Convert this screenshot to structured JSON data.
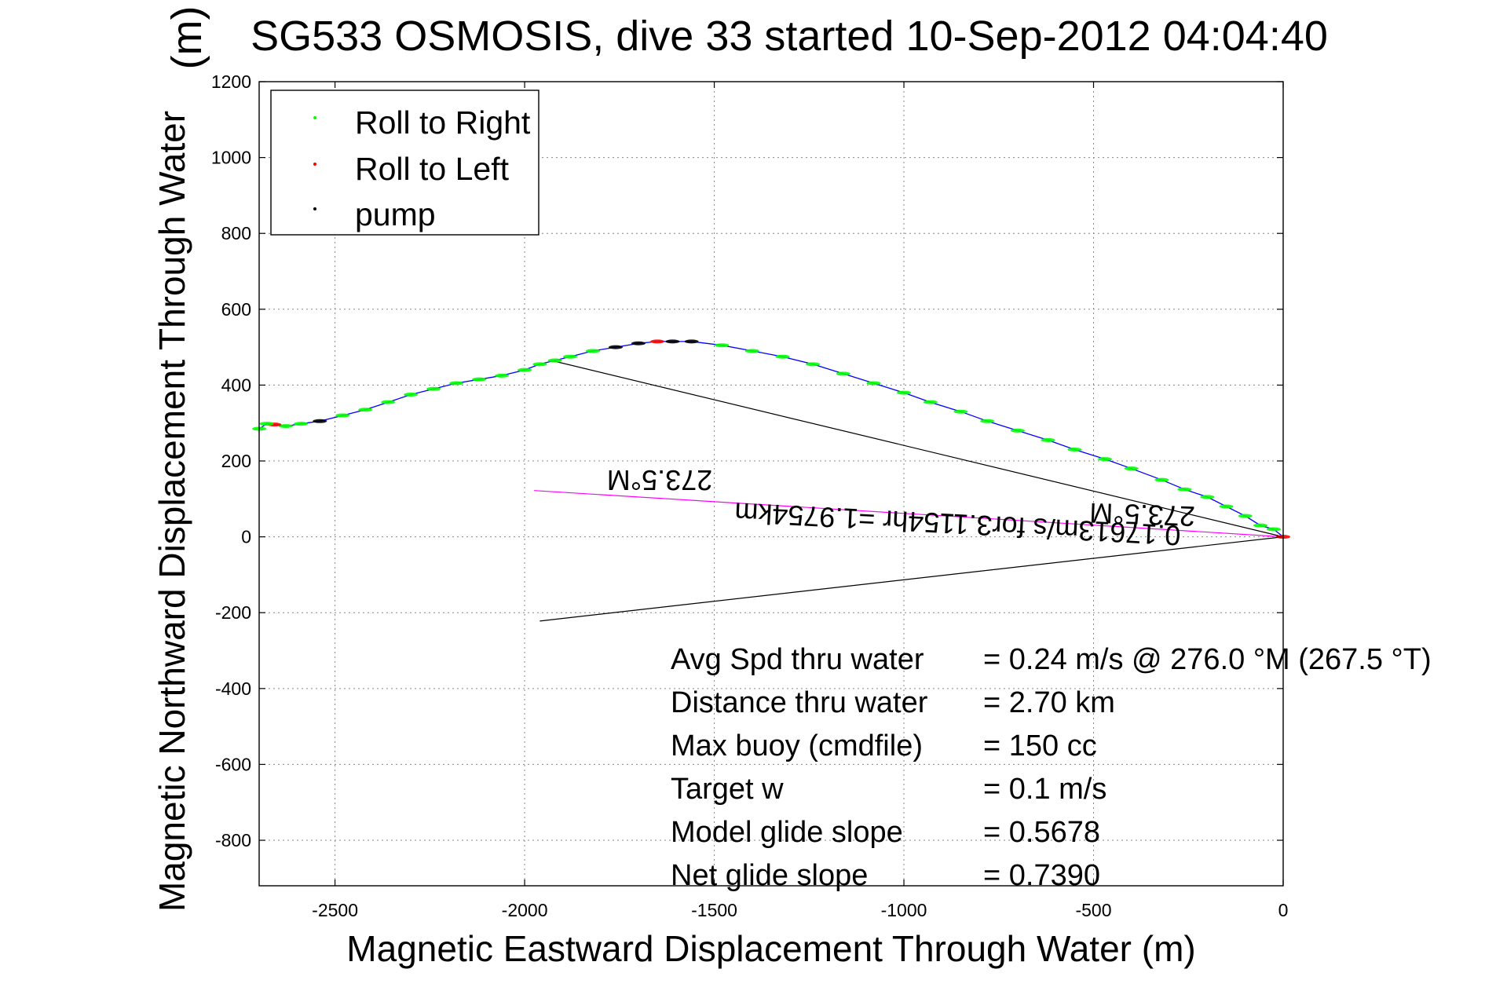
{
  "chart_data": {
    "type": "line",
    "title": "SG533 OSMOSIS, dive 33 started 10-Sep-2012 04:04:40",
    "title_overlap": "(m)",
    "xlabel": "Magnetic Eastward Displacement Through Water (m)",
    "ylabel": "Magnetic Northward Displacement Through Water",
    "xlim": [
      -2700,
      0
    ],
    "ylim": [
      -920,
      1200
    ],
    "xticks": [
      -2500,
      -2000,
      -1500,
      -1000,
      -500,
      0
    ],
    "yticks": [
      -800,
      -600,
      -400,
      -200,
      0,
      200,
      400,
      600,
      800,
      1000,
      1200
    ],
    "grid": true,
    "legend": {
      "placement": "top-left",
      "entries": [
        {
          "label": "Roll to Right",
          "color": "#00ff00"
        },
        {
          "label": "Roll to Left",
          "color": "#ff0000"
        },
        {
          "label": "pump",
          "color": "#000000"
        }
      ]
    },
    "series": [
      {
        "color": "#0000ff",
        "x": [
          0,
          -25,
          -60,
          -100,
          -150,
          -200,
          -260,
          -320,
          -400,
          -470,
          -550,
          -620,
          -700,
          -780,
          -850,
          -930,
          -1000,
          -1080,
          -1160,
          -1240,
          -1320,
          -1400,
          -1480,
          -1560,
          -1610,
          -1650,
          -1700,
          -1760,
          -1820,
          -1880,
          -1920,
          -1960,
          -2000,
          -2060,
          -2120,
          -2180,
          -2240,
          -2300,
          -2360,
          -2420,
          -2480,
          -2540,
          -2590,
          -2630,
          -2660,
          -2680,
          -2700
        ],
        "y": [
          0,
          20,
          30,
          55,
          80,
          105,
          125,
          150,
          180,
          205,
          230,
          255,
          280,
          305,
          330,
          355,
          380,
          405,
          430,
          455,
          475,
          490,
          505,
          515,
          515,
          515,
          510,
          500,
          490,
          475,
          465,
          455,
          440,
          425,
          415,
          405,
          390,
          375,
          355,
          335,
          320,
          305,
          298,
          292,
          296,
          298,
          285
        ]
      }
    ],
    "rays": [
      {
        "name": "",
        "color": "#000000",
        "x": [
          0,
          -1930
        ],
        "y": [
          0,
          465
        ]
      },
      {
        "name": "",
        "color": "#000000",
        "x": [
          0,
          -1960
        ],
        "y": [
          0,
          -222
        ]
      },
      {
        "name": "",
        "color": "#ff00ff",
        "x": [
          0,
          -1975
        ],
        "y": [
          0,
          122
        ]
      }
    ],
    "ray_labels": [
      {
        "text": "273.5°M",
        "x": -1625,
        "y": 165
      },
      {
        "text": "0.17613m/s for3.1154hr =1.9754km",
        "x": -1200,
        "y": 28
      },
      {
        "text": "273.5°M",
        "x": -235,
        "y": 30
      }
    ],
    "stats": [
      {
        "label": "Avg Spd thru water",
        "value": "=  0.24 m/s @ 276.0 °M (267.5 °T)"
      },
      {
        "label": "Distance thru water",
        "value": "=  2.70 km"
      },
      {
        "label": "Max buoy (cmdfile)",
        "value": "= 150 cc"
      },
      {
        "label": "Target w",
        "value": "= 0.1 m/s"
      },
      {
        "label": "Model glide slope",
        "value": "= 0.5678"
      },
      {
        "label": "Net glide slope",
        "value": "= 0.7390"
      }
    ]
  }
}
